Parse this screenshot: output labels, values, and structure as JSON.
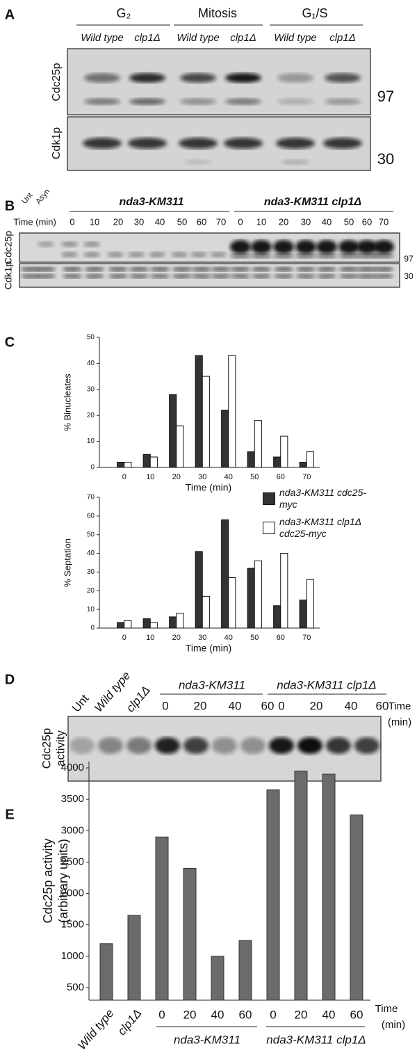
{
  "panel_labels": [
    "A",
    "B",
    "C",
    "D",
    "E"
  ],
  "panel_a": {
    "phases": [
      "G₂",
      "Mitosis",
      "G₁/S"
    ],
    "strains": [
      "Wild type",
      "clp1Δ",
      "Wild type",
      "clp1Δ",
      "Wild type",
      "clp1Δ"
    ],
    "rows": [
      "Cdc25p",
      "Cdk1p"
    ],
    "markers": [
      "97",
      "30"
    ]
  },
  "panel_b": {
    "lanes": [
      "Unt",
      "Asyn"
    ],
    "time_label": "Time (min)",
    "groups": [
      "nda3-KM311",
      "nda3-KM311 clp1Δ"
    ],
    "times": [
      "0",
      "10",
      "20",
      "30",
      "40",
      "50",
      "60",
      "70",
      "0",
      "10",
      "20",
      "30",
      "40",
      "50",
      "60",
      "70"
    ],
    "rows": [
      "Cdc25p",
      "Cdk1p"
    ],
    "markers": [
      "97",
      "30"
    ]
  },
  "panel_d": {
    "lanes": [
      "Unt",
      "Wild type",
      "clp1Δ"
    ],
    "groups": [
      "nda3-KM311",
      "nda3-KM311 clp1Δ"
    ],
    "times": [
      "0",
      "20",
      "40",
      "60",
      "0",
      "20",
      "40",
      "60"
    ],
    "time_label": [
      "Time",
      "(min)"
    ],
    "ylabel": [
      "Cdc25p",
      "activity"
    ]
  },
  "chart_data": [
    {
      "type": "bar",
      "ylabel": "% Binucleates",
      "xlabel": "Time (min)",
      "categories": [
        "0",
        "10",
        "20",
        "30",
        "40",
        "50",
        "60",
        "70"
      ],
      "series": [
        {
          "color": "#333333",
          "values": [
            2,
            5,
            28,
            43,
            22,
            6,
            4,
            2
          ]
        },
        {
          "color": "#ffffff",
          "values": [
            2,
            4,
            16,
            35,
            43,
            18,
            12,
            6
          ]
        }
      ],
      "ylim": [
        0,
        50
      ],
      "yticks": [
        0,
        10,
        20,
        30,
        40,
        50
      ]
    },
    {
      "type": "bar",
      "ylabel": "% Septation",
      "xlabel": "Time (min)",
      "categories": [
        "0",
        "10",
        "20",
        "30",
        "40",
        "50",
        "60",
        "70"
      ],
      "series": [
        {
          "name": "nda3-KM311 cdc25-myc",
          "color": "#333333",
          "values": [
            3,
            5,
            6,
            41,
            58,
            32,
            12,
            15
          ]
        },
        {
          "name": "nda3-KM311 clp1Δ cdc25-myc",
          "color": "#ffffff",
          "values": [
            4,
            3,
            8,
            17,
            27,
            36,
            40,
            26
          ]
        }
      ],
      "ylim": [
        0,
        70
      ],
      "yticks": [
        0,
        10,
        20,
        30,
        40,
        50,
        60,
        70
      ]
    },
    {
      "type": "bar",
      "ylabel": [
        "Cdc25p activity",
        "(arbitrary units)"
      ],
      "categories": [
        "Wild type",
        "clp1Δ",
        "0",
        "20",
        "40",
        "60",
        "0",
        "20",
        "40",
        "60"
      ],
      "values": [
        1200,
        1650,
        2900,
        2400,
        1000,
        1250,
        3650,
        3950,
        3900,
        3250
      ],
      "color": "#6b6b6b",
      "ylim": [
        300,
        4100
      ],
      "yticks": [
        500,
        1000,
        1500,
        2000,
        2500,
        3000,
        3500,
        4000
      ],
      "groups": [
        "nda3-KM311",
        "nda3-KM311 clp1Δ"
      ],
      "time_label": [
        "Time",
        "(min)"
      ]
    }
  ]
}
